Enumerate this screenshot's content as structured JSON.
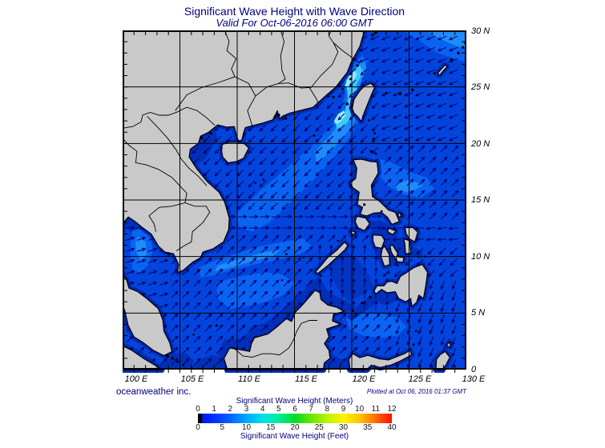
{
  "header": {
    "title": "Significant Wave Height with Wave Direction",
    "subtitle": "Valid For Oct-06-2016 06:00 GMT"
  },
  "footer": {
    "credit": "oceanweather inc.",
    "plotted": "Plotted at Oct 06, 2016 01:37 GMT"
  },
  "axes": {
    "lon_labels": [
      "100 E",
      "105 E",
      "110 E",
      "115 E",
      "120 E",
      "125 E",
      "130 E"
    ],
    "lat_labels": [
      "30 N",
      "25 N",
      "20 N",
      "15 N",
      "10 N",
      "5 N",
      "0"
    ],
    "lon_range": [
      100,
      130
    ],
    "lat_range": [
      0,
      30
    ],
    "grid_interval_deg": 5,
    "tick_interval_deg": 1
  },
  "colorbar": {
    "meters_label": "Significant Wave Height (Meters)",
    "feet_label": "Significant Wave Height (Feet)",
    "meters_ticks": [
      0,
      1,
      2,
      3,
      4,
      5,
      6,
      7,
      8,
      9,
      10,
      11,
      12
    ],
    "feet_ticks": [
      0,
      5,
      10,
      15,
      20,
      25,
      30,
      35,
      40
    ],
    "gradient": [
      [
        "0%",
        "#000000"
      ],
      [
        "1.5%",
        "#000000"
      ],
      [
        "2.5%",
        "#0018e8"
      ],
      [
        "8.3%",
        "#0030ff"
      ],
      [
        "16.7%",
        "#0063ff"
      ],
      [
        "25%",
        "#00a8ff"
      ],
      [
        "33.3%",
        "#00e0e8"
      ],
      [
        "41.7%",
        "#00ee9a"
      ],
      [
        "50%",
        "#00dc28"
      ],
      [
        "58.3%",
        "#66e800"
      ],
      [
        "66.7%",
        "#bdf200"
      ],
      [
        "75%",
        "#fff200"
      ],
      [
        "83.3%",
        "#ffc400"
      ],
      [
        "91.7%",
        "#ff6a00"
      ],
      [
        "100%",
        "#ff0d00"
      ]
    ]
  },
  "map_colors": {
    "sea_base": "#0345dc",
    "sea_dark": "#0130b8",
    "sea_darker": "#021d96",
    "sea_mid_dark": "#0236c2",
    "sea_light": "#0a64f2",
    "sea_lighter": "#1e8cfb",
    "sea_cyan": "#3fc8f9",
    "sea_bright": "#8fecfe",
    "land": "#c9c9c9",
    "coast": "#000000",
    "arrow": "#00006b",
    "grid": "#000000"
  },
  "text_colors": {
    "navy": "#00007e",
    "tick_numbers": "#151515",
    "axis_labels": "#000000"
  }
}
